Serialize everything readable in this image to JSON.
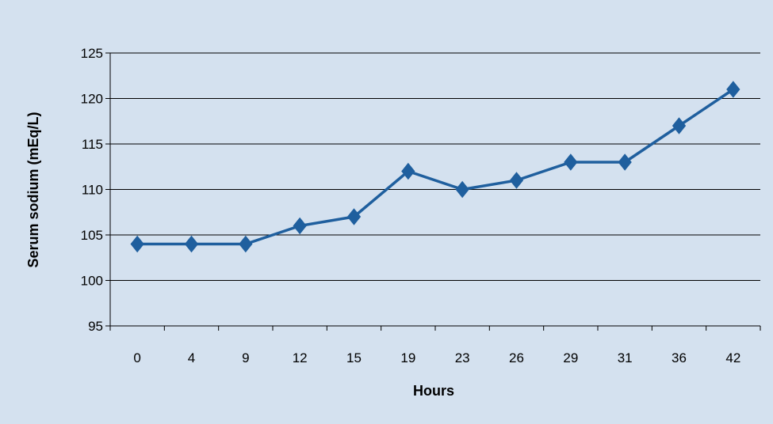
{
  "chart_data": {
    "type": "line",
    "categories": [
      "0",
      "4",
      "9",
      "12",
      "15",
      "19",
      "23",
      "26",
      "29",
      "31",
      "36",
      "42"
    ],
    "series": [
      {
        "values": [
          104,
          104,
          104,
          106,
          107,
          112,
          110,
          111,
          113,
          113,
          117,
          121
        ],
        "color": "#1f5f9e",
        "marker": "diamond"
      }
    ],
    "xlabel": "Hours",
    "ylabel": "Serum sodium (mEq/L)",
    "ylim": [
      95,
      125
    ],
    "yticks": [
      95,
      100,
      105,
      110,
      115,
      120,
      125
    ],
    "grid": true,
    "background_color": "#d4e1ef",
    "gridline_color": "#000000"
  }
}
